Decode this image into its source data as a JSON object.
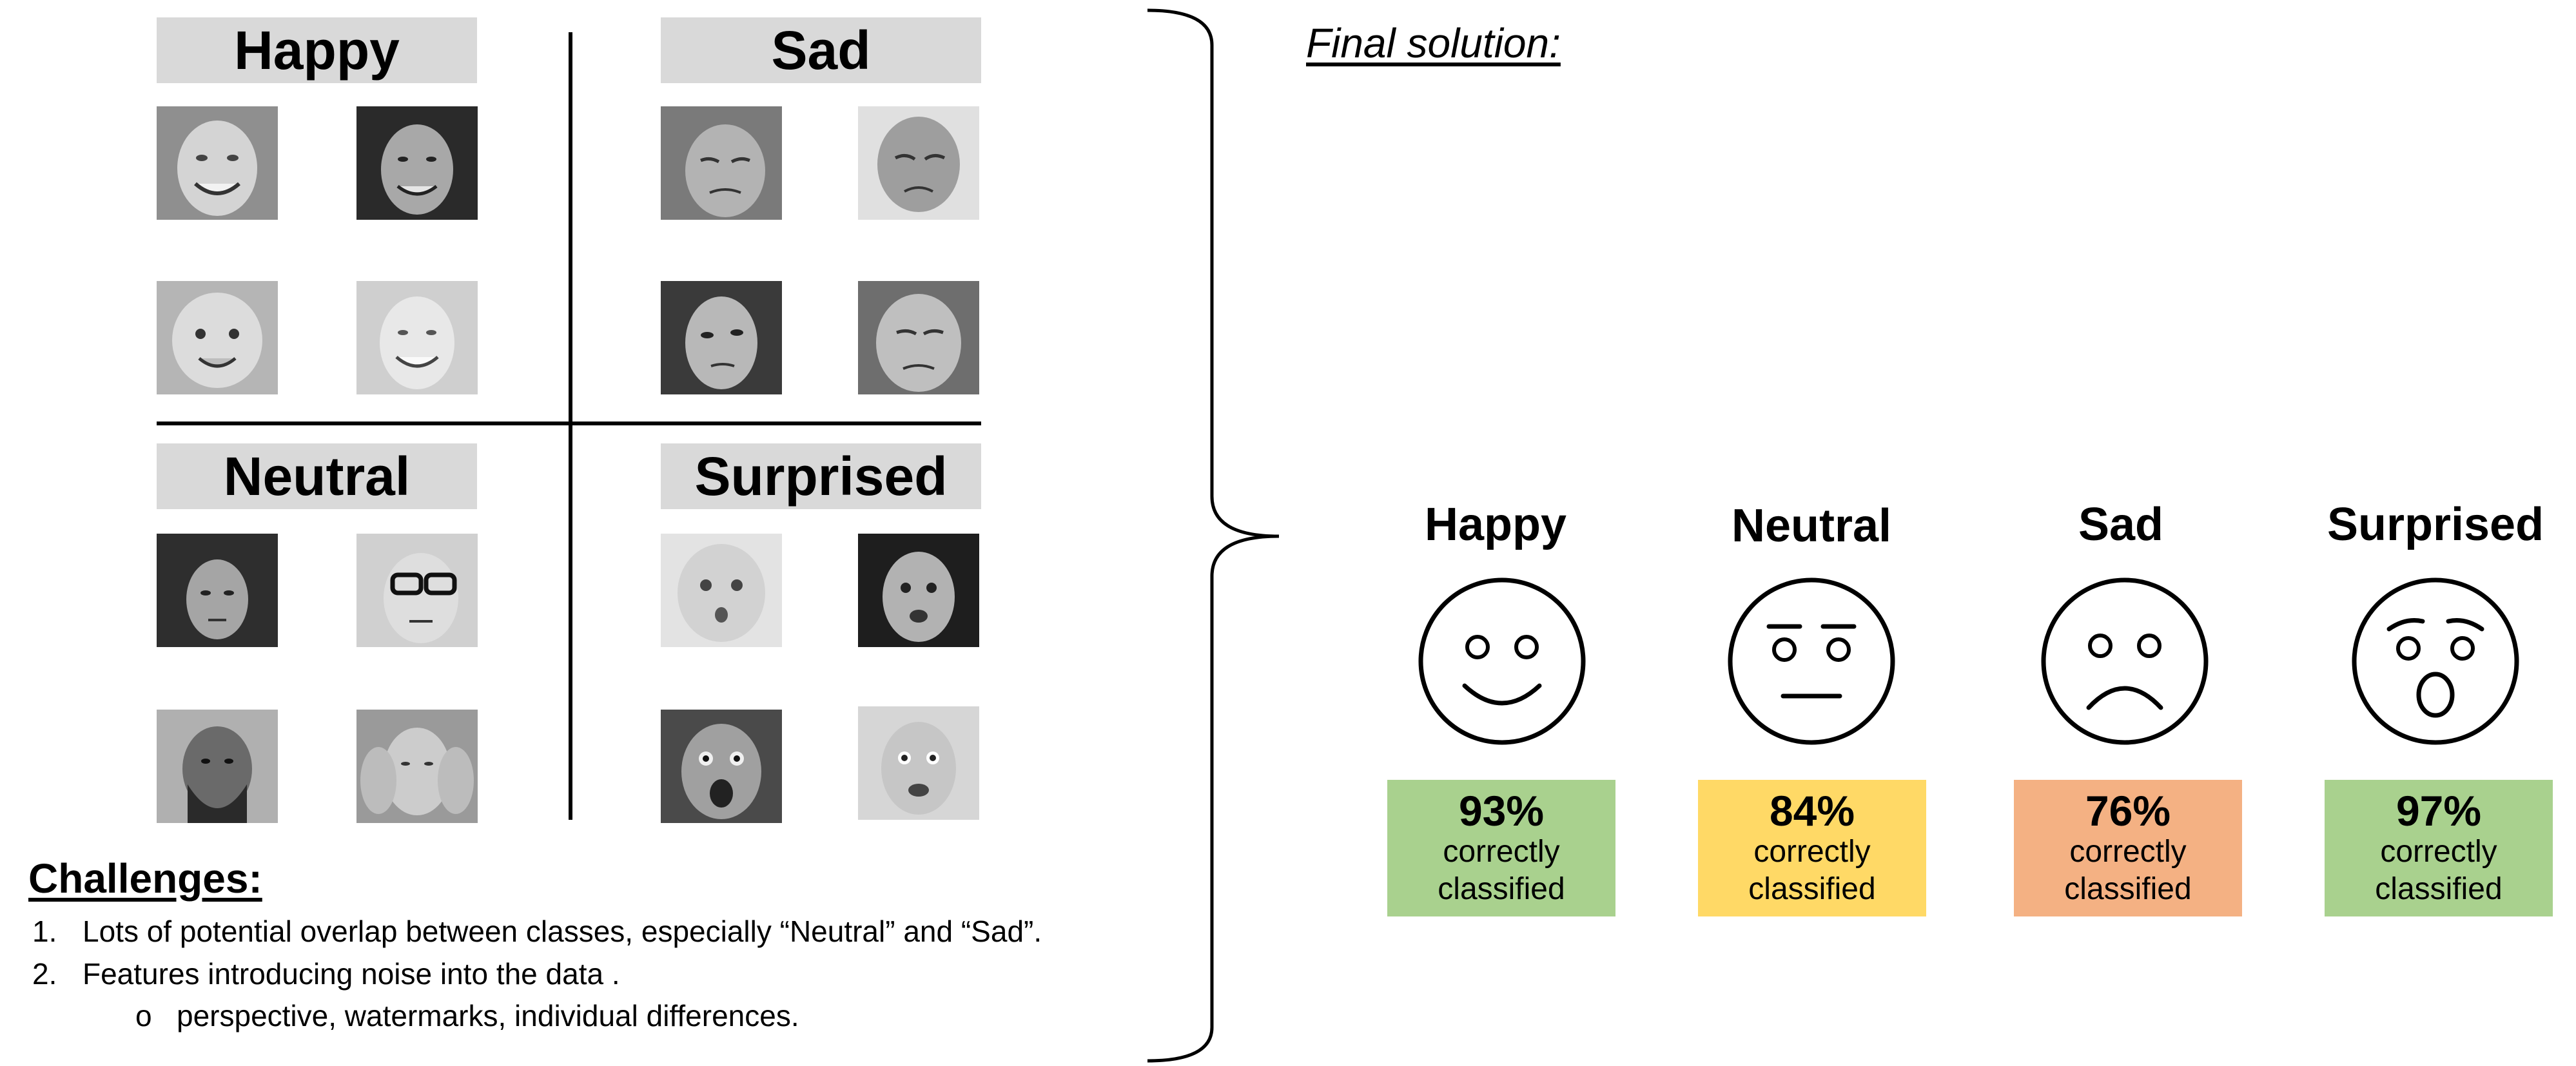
{
  "categories": {
    "happy": "Happy",
    "sad": "Sad",
    "neutral": "Neutral",
    "surprised": "Surprised"
  },
  "challenges": {
    "title": "Challenges:",
    "items": [
      {
        "num": "1.",
        "text": "Lots of potential overlap between classes, especially “Neutral” and “Sad”."
      },
      {
        "num": "2.",
        "text": "Features introducing noise into the data ."
      }
    ],
    "sub_items": [
      {
        "bullet": "o",
        "text": "perspective, watermarks, individual differences."
      }
    ]
  },
  "final": {
    "title": "Final solution:",
    "results": [
      {
        "label": "Happy",
        "percent": "93%",
        "line1": "correctly",
        "line2": "classified",
        "color": "#a9d18e",
        "icon": "happy-face-icon"
      },
      {
        "label": "Neutral",
        "percent": "84%",
        "line1": "correctly",
        "line2": "classified",
        "color": "#ffd966",
        "icon": "neutral-face-icon"
      },
      {
        "label": "Sad",
        "percent": "76%",
        "line1": "correctly",
        "line2": "classified",
        "color": "#f4b183",
        "icon": "sad-face-icon"
      },
      {
        "label": "Surprised",
        "percent": "97%",
        "line1": "correctly",
        "line2": "classified",
        "color": "#a9d18e",
        "icon": "surprised-face-icon"
      }
    ]
  },
  "colors": {
    "header_gray": "#d9d9d9",
    "green": "#a9d18e",
    "yellow": "#ffd966",
    "orange": "#f4b183"
  }
}
